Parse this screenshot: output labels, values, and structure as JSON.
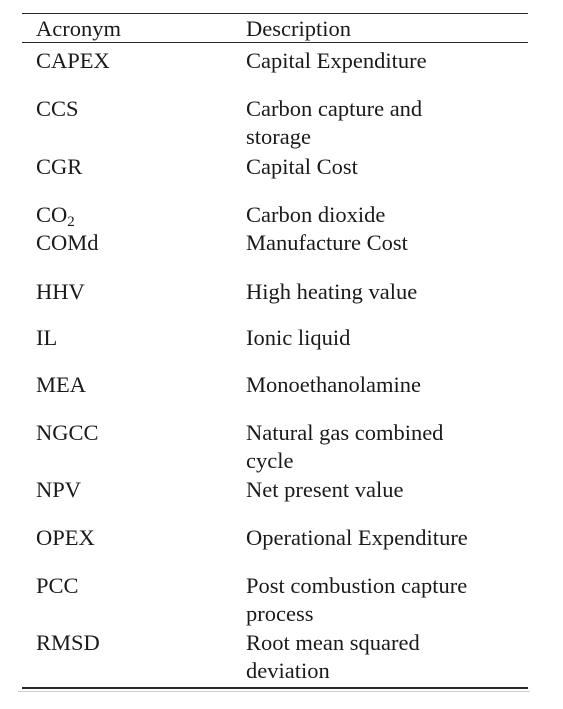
{
  "header": {
    "acronym": "Acronym",
    "description": "Description"
  },
  "rows": [
    {
      "acronym": "CAPEX",
      "description": [
        "Capital Expenditure"
      ]
    },
    {
      "acronym": "CCS",
      "description": [
        "Carbon capture and",
        "storage"
      ]
    },
    {
      "acronym": "CGR",
      "description": [
        "Capital Cost"
      ]
    },
    {
      "acronym": "CO",
      "acronym_sub": "2",
      "description": [
        "Carbon dioxide"
      ]
    },
    {
      "acronym": "COMd",
      "description": [
        "Manufacture Cost"
      ]
    },
    {
      "acronym": "HHV",
      "description": [
        "High heating value"
      ]
    },
    {
      "acronym": "IL",
      "description": [
        "Ionic liquid"
      ]
    },
    {
      "acronym": "MEA",
      "description": [
        "Monoethanolamine"
      ]
    },
    {
      "acronym": "NGCC",
      "description": [
        "Natural gas combined",
        "cycle"
      ]
    },
    {
      "acronym": "NPV",
      "description": [
        "Net present value"
      ]
    },
    {
      "acronym": "OPEX",
      "description": [
        "Operational Expenditure"
      ]
    },
    {
      "acronym": "PCC",
      "description": [
        "Post combustion capture",
        "process"
      ]
    },
    {
      "acronym": "RMSD",
      "description": [
        "Root mean squared",
        "deviation"
      ]
    }
  ]
}
